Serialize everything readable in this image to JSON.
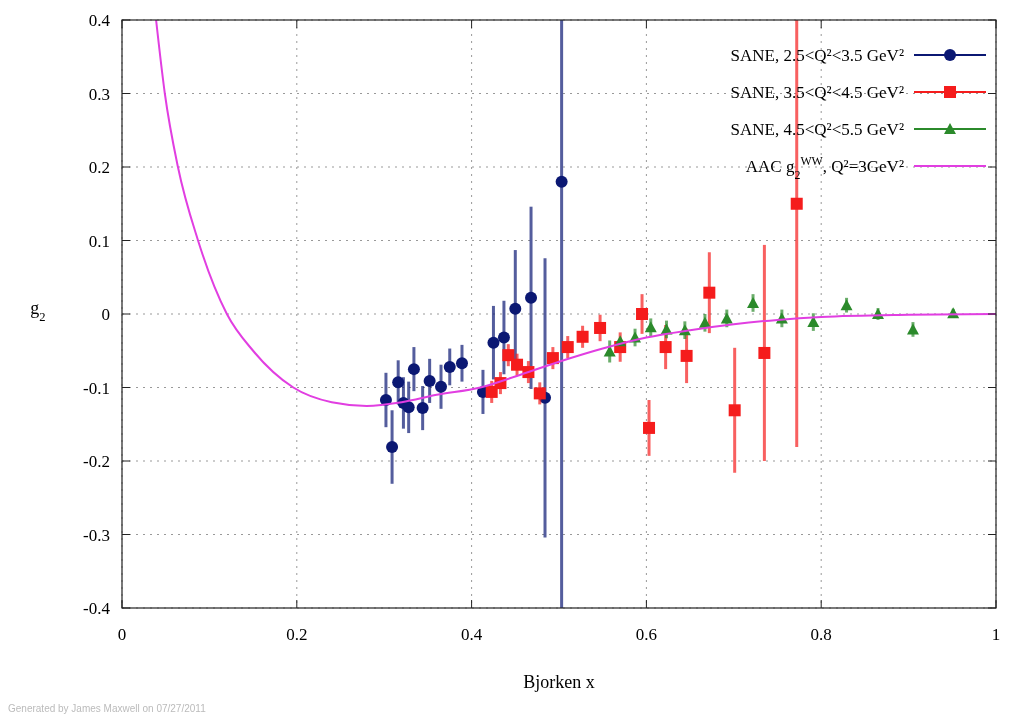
{
  "chart_data": {
    "type": "scatter",
    "xlabel": "Bjorken x",
    "ylabel": "g$_{2}$",
    "xlim": [
      0,
      1
    ],
    "ylim": [
      -0.4,
      0.4
    ],
    "xticks": [
      0,
      0.2,
      0.4,
      0.6,
      0.8,
      1
    ],
    "yticks": [
      {
        "value": -0.4,
        "label": "-0.4"
      },
      {
        "value": -0.3,
        "label": "-0.3"
      },
      {
        "value": -0.2,
        "label": "-0.2"
      },
      {
        "value": -0.1,
        "label": "-0.1"
      },
      0,
      {
        "value": 0.1,
        "label": "0.1"
      },
      {
        "value": 0.2,
        "label": "0.2"
      },
      {
        "value": 0.3,
        "label": "0.3"
      },
      {
        "value": 0.4,
        "label": "0.4"
      }
    ],
    "grid": true,
    "legend": "top right",
    "annotations": [
      "Generated by James Maxwell on 07/27/2011"
    ],
    "series": [
      {
        "name": "SANE, 2.5<Q²<3.5 GeV²",
        "marker": "circle",
        "color": "#0b1873",
        "x": [
          0.302,
          0.309,
          0.316,
          0.322,
          0.328,
          0.334,
          0.344,
          0.352,
          0.365,
          0.375,
          0.389,
          0.413,
          0.425,
          0.437,
          0.45,
          0.468,
          0.484,
          0.503
        ],
        "values": [
          -0.117,
          -0.181,
          -0.093,
          -0.121,
          -0.127,
          -0.075,
          -0.128,
          -0.091,
          -0.099,
          -0.072,
          -0.067,
          -0.106,
          -0.039,
          -0.032,
          0.007,
          0.022,
          -0.114,
          0.18
        ],
        "errors": [
          0.037,
          0.05,
          0.03,
          0.035,
          0.035,
          0.03,
          0.03,
          0.03,
          0.03,
          0.025,
          0.025,
          0.03,
          0.05,
          0.05,
          0.08,
          0.124,
          0.19,
          [
            -0.4,
            0.4
          ]
        ]
      },
      {
        "name": "SANE, 3.5<Q²<4.5 GeV²",
        "marker": "square",
        "color": "#f51c1c",
        "x": [
          0.423,
          0.433,
          0.442,
          0.452,
          0.465,
          0.478,
          0.493,
          0.51,
          0.527,
          0.547,
          0.57,
          0.595,
          0.603,
          0.622,
          0.646,
          0.672,
          0.701,
          0.735,
          0.772
        ],
        "values": [
          -0.106,
          -0.094,
          -0.056,
          -0.069,
          -0.079,
          -0.108,
          -0.06,
          -0.045,
          -0.031,
          -0.019,
          -0.045,
          0,
          -0.155,
          -0.045,
          -0.057,
          0.029,
          -0.131,
          -0.053,
          0.15
        ],
        "errors": [
          0.015,
          0.015,
          0.015,
          0.015,
          0.015,
          0.015,
          0.015,
          0.015,
          0.015,
          0.018,
          0.02,
          0.027,
          0.038,
          0.03,
          0.037,
          0.055,
          0.085,
          0.147,
          [
            -0.181,
            0.4
          ]
        ]
      },
      {
        "name": "SANE, 4.5<Q²<5.5 GeV²",
        "marker": "triangle",
        "color": "#2b8a2b",
        "x": [
          0.558,
          0.57,
          0.587,
          0.605,
          0.623,
          0.644,
          0.667,
          0.692,
          0.722,
          0.755,
          0.791,
          0.829,
          0.865,
          0.905,
          0.951
        ],
        "values": [
          -0.051,
          -0.037,
          -0.032,
          -0.018,
          -0.021,
          -0.022,
          -0.012,
          -0.006,
          0.015,
          -0.006,
          -0.011,
          0.012,
          0,
          -0.021,
          0.001
        ],
        "errors": [
          0.015,
          null,
          0.012,
          0.012,
          0.012,
          0.012,
          0.012,
          0.012,
          0.012,
          0.012,
          0.012,
          0.01,
          0.008,
          0.01,
          0.006
        ]
      },
      {
        "name": "AAC g$_{2}$$^{WW}$, Q²=3GeV²",
        "type": "line",
        "marker": "none",
        "color": "#e13ee1",
        "x": [
          0.039,
          0.049,
          0.064,
          0.087,
          0.12,
          0.15,
          0.196,
          0.24,
          0.28,
          0.32,
          0.36,
          0.41,
          0.45,
          0.5,
          0.55,
          0.6,
          0.65,
          0.7,
          0.75,
          0.8,
          0.9,
          1
        ],
        "values": [
          0.4,
          0.3,
          0.2,
          0.1,
          0,
          -0.05,
          -0.1,
          -0.12,
          -0.125,
          -0.12,
          -0.11,
          -0.1,
          -0.085,
          -0.065,
          -0.047,
          -0.032,
          -0.022,
          -0.014,
          -0.008,
          -0.004,
          -0.001,
          0
        ]
      }
    ]
  }
}
